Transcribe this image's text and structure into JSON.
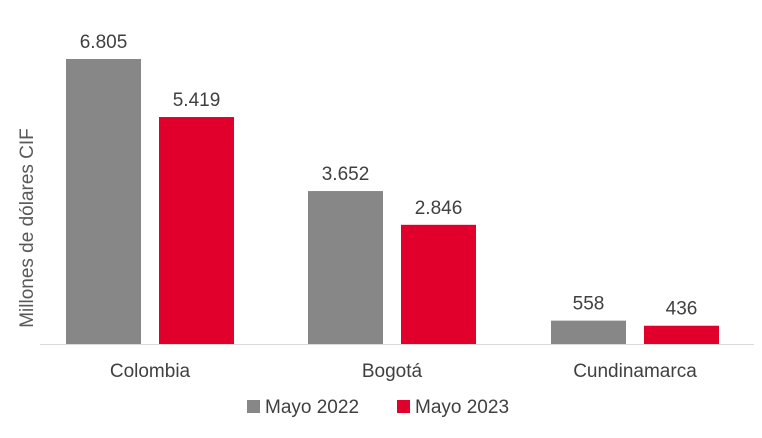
{
  "chart_data": {
    "type": "bar",
    "categories": [
      "Colombia",
      "Bogotá",
      "Cundinamarca"
    ],
    "series": [
      {
        "name": "Mayo 2022",
        "color": "#878787",
        "values": [
          6805,
          3652,
          558
        ],
        "labels": [
          "6.805",
          "3.652",
          "558"
        ]
      },
      {
        "name": "Mayo 2023",
        "color": "#E0002B",
        "values": [
          5419,
          2846,
          436
        ],
        "labels": [
          "5.419",
          "2.846",
          "436"
        ]
      }
    ],
    "ylabel": "Millones de dólares CIF",
    "ylim": [
      0,
      6805
    ],
    "grid": false,
    "legend_position": "bottom"
  }
}
